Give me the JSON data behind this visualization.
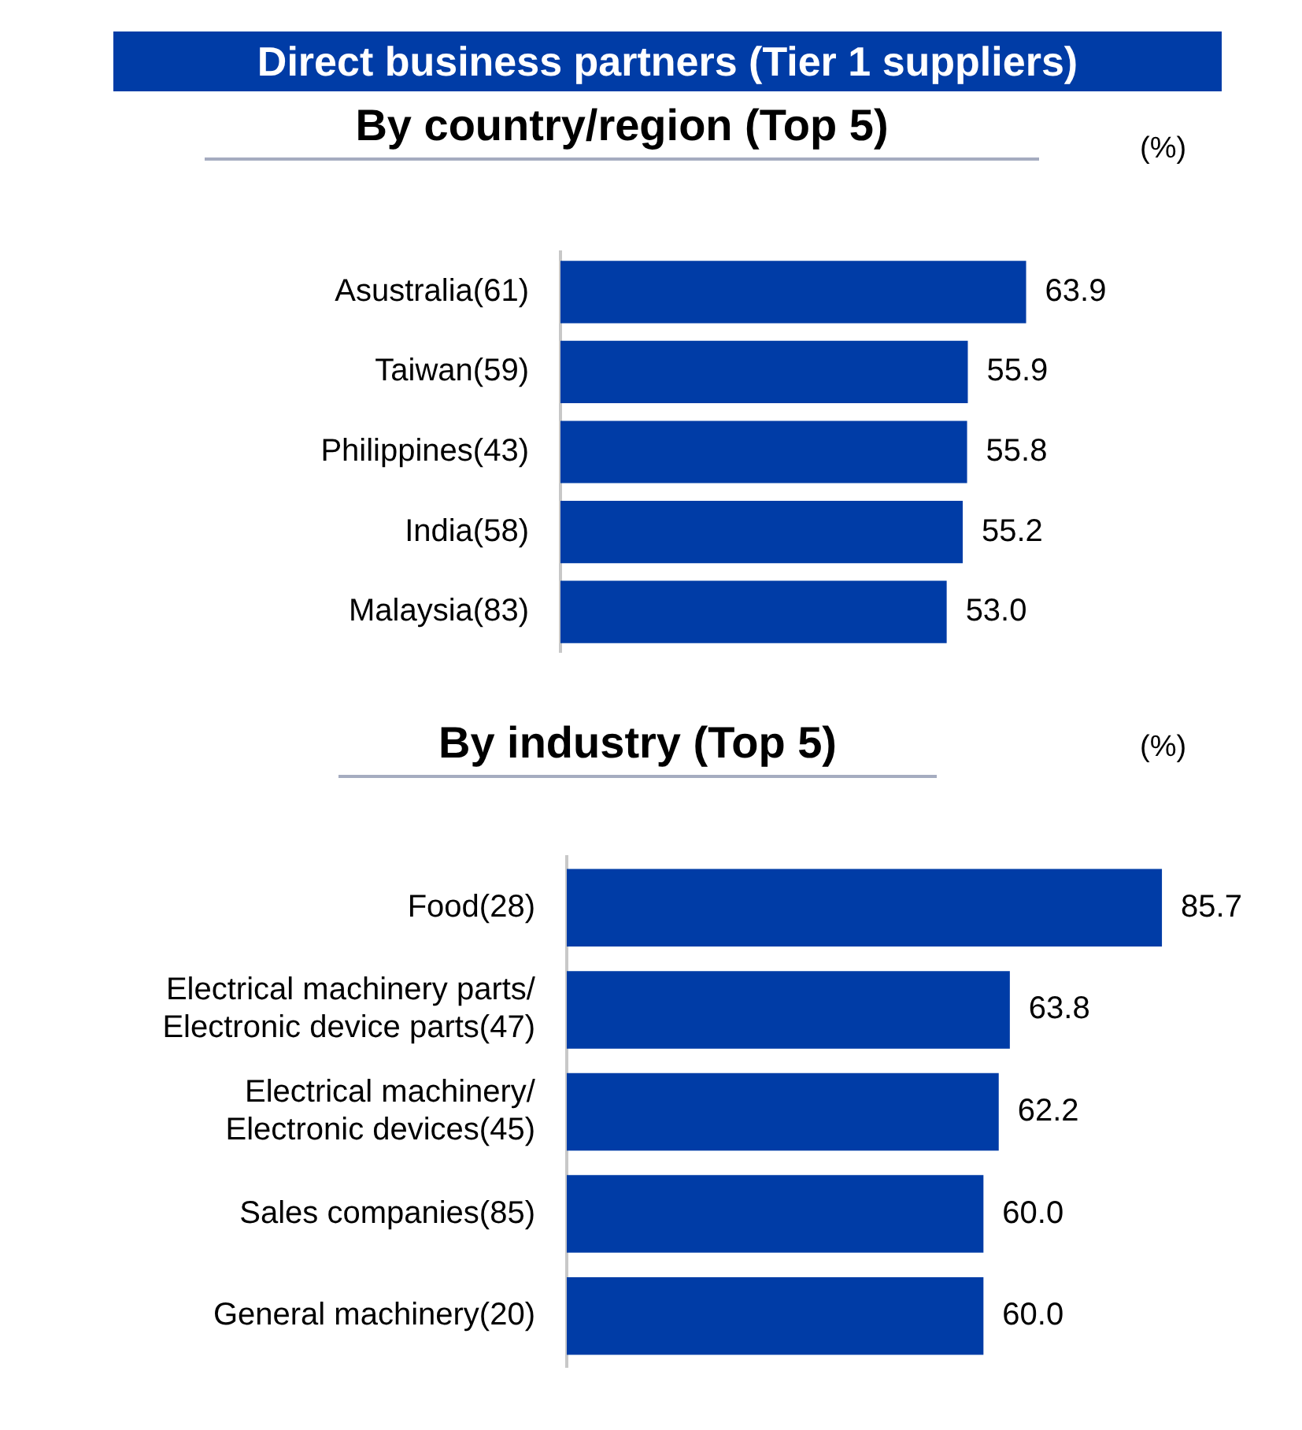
{
  "chart_data": [
    {
      "type": "bar",
      "orientation": "horizontal",
      "title": "Direct business partners (Tier 1 suppliers)",
      "subtitle": "By country/region (Top 5)",
      "annotations": [
        "(%)"
      ],
      "categories": [
        "Asustralia(61)",
        "Taiwan(59)",
        "Philippines(43)",
        "India(58)",
        "Malaysia(83)"
      ],
      "values": [
        63.9,
        55.9,
        55.8,
        55.2,
        53.0
      ],
      "value_labels": [
        "63.9",
        "55.9",
        "55.8",
        "55.2",
        "53.0"
      ],
      "color": "#003ca6",
      "grid": false,
      "legend": false,
      "tick_labels": "y"
    },
    {
      "type": "bar",
      "orientation": "horizontal",
      "title": "By industry (Top 5)",
      "annotations": [
        "(%)"
      ],
      "categories": [
        "Food(28)",
        "Electrical machinery parts/ Electronic device parts(47)",
        "Electrical machinery/ Electronic devices(45)",
        "Sales companies(85)",
        "General machinery(20)"
      ],
      "values": [
        85.7,
        63.8,
        62.2,
        60.0,
        60.0
      ],
      "value_labels": [
        "85.7",
        "63.8",
        "62.2",
        "60.0",
        "60.0"
      ],
      "color": "#003ca6",
      "grid": false,
      "legend": false,
      "tick_labels": "y"
    }
  ]
}
